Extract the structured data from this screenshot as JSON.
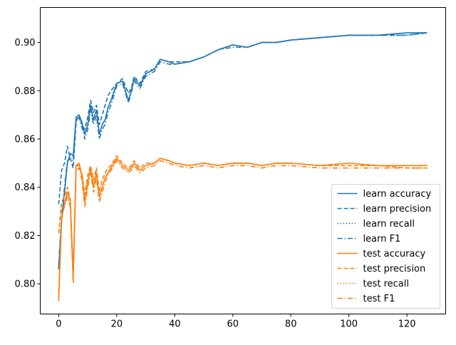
{
  "chart_data": {
    "type": "line",
    "title": "",
    "xlabel": "",
    "ylabel": "",
    "xlim": [
      -6.35,
      133.35
    ],
    "ylim": [
      0.7875,
      0.9145
    ],
    "xticks": [
      "0",
      "20",
      "40",
      "60",
      "80",
      "100",
      "120"
    ],
    "yticks": [
      "0.80",
      "0.82",
      "0.84",
      "0.86",
      "0.88",
      "0.90"
    ],
    "legend_position": "lower right",
    "grid": false,
    "anchors": [
      0,
      1,
      2,
      3,
      4,
      5,
      6,
      7,
      8,
      9,
      10,
      11,
      12,
      13,
      14,
      15,
      16,
      17,
      18,
      20,
      22,
      24,
      25,
      26,
      28,
      30,
      33,
      35,
      38,
      40,
      45,
      50,
      55,
      60,
      65,
      70,
      75,
      80,
      90,
      100,
      110,
      120,
      127
    ],
    "series": [
      {
        "name": "learn accuracy",
        "color": "#1f77b4",
        "dash": "solid",
        "anchor_values": [
          0.806,
          0.826,
          0.838,
          0.85,
          0.854,
          0.853,
          0.869,
          0.87,
          0.867,
          0.862,
          0.866,
          0.874,
          0.868,
          0.872,
          0.862,
          0.866,
          0.868,
          0.873,
          0.876,
          0.883,
          0.884,
          0.876,
          0.88,
          0.885,
          0.882,
          0.887,
          0.889,
          0.893,
          0.892,
          0.891,
          0.892,
          0.894,
          0.897,
          0.899,
          0.898,
          0.9,
          0.9,
          0.901,
          0.902,
          0.903,
          0.903,
          0.904,
          0.904
        ]
      },
      {
        "name": "learn precision",
        "color": "#1f77b4",
        "dash": "dashed",
        "anchor_values": [
          0.833,
          0.847,
          0.85,
          0.857,
          0.852,
          0.848,
          0.867,
          0.87,
          0.866,
          0.864,
          0.869,
          0.876,
          0.871,
          0.874,
          0.866,
          0.87,
          0.874,
          0.878,
          0.88,
          0.883,
          0.885,
          0.879,
          0.881,
          0.886,
          0.883,
          0.888,
          0.889,
          0.893,
          0.892,
          0.892,
          0.892,
          0.894,
          0.897,
          0.899,
          0.898,
          0.9,
          0.9,
          0.901,
          0.902,
          0.903,
          0.903,
          0.903,
          0.904
        ]
      },
      {
        "name": "learn recall",
        "color": "#1f77b4",
        "dash": "dotted",
        "anchor_values": [
          0.806,
          0.826,
          0.838,
          0.85,
          0.854,
          0.853,
          0.869,
          0.87,
          0.867,
          0.862,
          0.866,
          0.874,
          0.868,
          0.872,
          0.862,
          0.866,
          0.868,
          0.873,
          0.876,
          0.883,
          0.884,
          0.876,
          0.88,
          0.885,
          0.882,
          0.887,
          0.889,
          0.893,
          0.892,
          0.891,
          0.892,
          0.894,
          0.897,
          0.899,
          0.898,
          0.9,
          0.9,
          0.901,
          0.902,
          0.903,
          0.903,
          0.904,
          0.904
        ]
      },
      {
        "name": "learn F1",
        "color": "#1f77b4",
        "dash": "dashdot",
        "anchor_values": [
          0.808,
          0.828,
          0.84,
          0.851,
          0.852,
          0.851,
          0.868,
          0.869,
          0.865,
          0.86,
          0.864,
          0.872,
          0.866,
          0.87,
          0.86,
          0.864,
          0.866,
          0.871,
          0.874,
          0.882,
          0.883,
          0.875,
          0.879,
          0.884,
          0.881,
          0.886,
          0.888,
          0.892,
          0.891,
          0.891,
          0.892,
          0.894,
          0.897,
          0.898,
          0.898,
          0.9,
          0.9,
          0.901,
          0.902,
          0.903,
          0.903,
          0.903,
          0.904
        ]
      },
      {
        "name": "test accuracy",
        "color": "#ff7f0e",
        "dash": "solid",
        "anchor_values": [
          0.793,
          0.827,
          0.833,
          0.838,
          0.834,
          0.803,
          0.849,
          0.85,
          0.845,
          0.834,
          0.842,
          0.848,
          0.84,
          0.846,
          0.836,
          0.84,
          0.844,
          0.846,
          0.848,
          0.852,
          0.849,
          0.847,
          0.848,
          0.85,
          0.847,
          0.849,
          0.85,
          0.852,
          0.851,
          0.85,
          0.849,
          0.85,
          0.849,
          0.85,
          0.85,
          0.849,
          0.85,
          0.85,
          0.849,
          0.85,
          0.849,
          0.849,
          0.849
        ]
      },
      {
        "name": "test precision",
        "color": "#ff7f0e",
        "dash": "dashed",
        "anchor_values": [
          0.821,
          0.834,
          0.836,
          0.84,
          0.835,
          0.805,
          0.849,
          0.849,
          0.846,
          0.837,
          0.845,
          0.849,
          0.843,
          0.848,
          0.838,
          0.843,
          0.846,
          0.848,
          0.849,
          0.853,
          0.85,
          0.848,
          0.849,
          0.851,
          0.848,
          0.85,
          0.85,
          0.852,
          0.851,
          0.85,
          0.849,
          0.85,
          0.849,
          0.85,
          0.85,
          0.849,
          0.85,
          0.85,
          0.849,
          0.849,
          0.849,
          0.848,
          0.848
        ]
      },
      {
        "name": "test recall",
        "color": "#ff7f0e",
        "dash": "dotted",
        "anchor_values": [
          0.793,
          0.827,
          0.833,
          0.838,
          0.834,
          0.803,
          0.849,
          0.85,
          0.845,
          0.834,
          0.842,
          0.848,
          0.84,
          0.846,
          0.836,
          0.84,
          0.844,
          0.846,
          0.848,
          0.852,
          0.849,
          0.847,
          0.848,
          0.85,
          0.847,
          0.849,
          0.85,
          0.852,
          0.851,
          0.85,
          0.849,
          0.85,
          0.849,
          0.85,
          0.85,
          0.849,
          0.85,
          0.85,
          0.849,
          0.85,
          0.849,
          0.849,
          0.849
        ]
      },
      {
        "name": "test F1",
        "color": "#ff7f0e",
        "dash": "dashdot",
        "anchor_values": [
          0.796,
          0.828,
          0.832,
          0.836,
          0.832,
          0.8,
          0.847,
          0.848,
          0.843,
          0.832,
          0.84,
          0.846,
          0.838,
          0.844,
          0.834,
          0.838,
          0.842,
          0.845,
          0.847,
          0.851,
          0.848,
          0.846,
          0.847,
          0.849,
          0.846,
          0.848,
          0.849,
          0.851,
          0.85,
          0.849,
          0.848,
          0.849,
          0.848,
          0.849,
          0.849,
          0.848,
          0.849,
          0.849,
          0.848,
          0.848,
          0.848,
          0.848,
          0.848
        ]
      }
    ]
  }
}
